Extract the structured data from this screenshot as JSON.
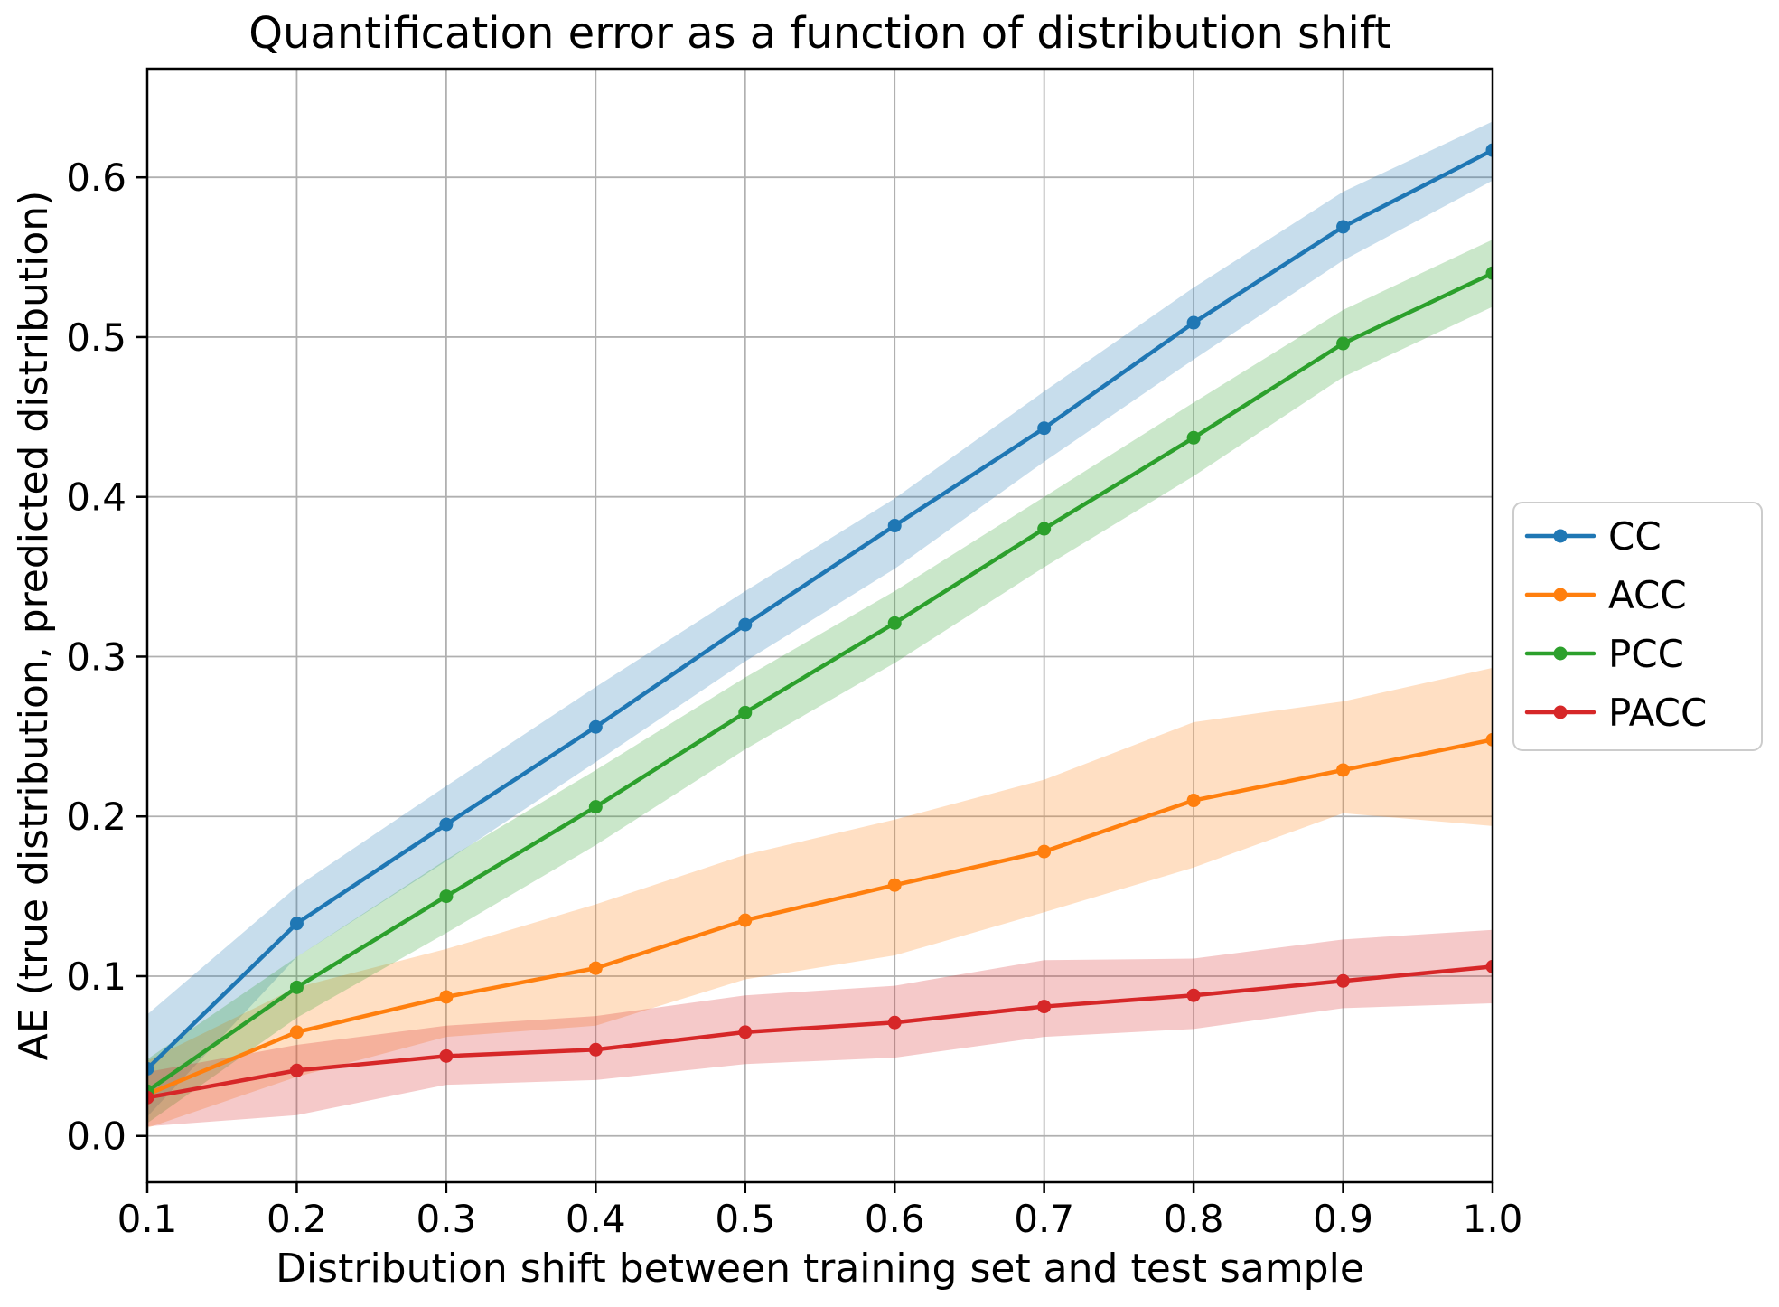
{
  "figure": {
    "background": "#ffffff",
    "title": "Quantification error as a function of distribution shift"
  },
  "chart_data": {
    "type": "line",
    "title": "Quantification error as a function of distribution shift",
    "xlabel": "Distribution shift between training set and test sample",
    "ylabel": "AE (true distribution, predicted distribution)",
    "x": [
      0.1,
      0.2,
      0.3,
      0.4,
      0.5,
      0.6,
      0.7,
      0.8,
      0.9,
      1.0
    ],
    "xticks": [
      "0.1",
      "0.2",
      "0.3",
      "0.4",
      "0.5",
      "0.6",
      "0.7",
      "0.8",
      "0.9",
      "1.0"
    ],
    "yticks": [
      "0.0",
      "0.1",
      "0.2",
      "0.3",
      "0.4",
      "0.5",
      "0.6"
    ],
    "xtick_values": [
      0.1,
      0.2,
      0.3,
      0.4,
      0.5,
      0.6,
      0.7,
      0.8,
      0.9,
      1.0
    ],
    "ytick_values": [
      0.0,
      0.1,
      0.2,
      0.3,
      0.4,
      0.5,
      0.6
    ],
    "xlim": [
      0.1,
      1.0
    ],
    "ylim": [
      -0.029,
      0.668
    ],
    "grid": true,
    "grid_color": "#b0b0b0",
    "spine_color": "#000000",
    "band_alpha": 0.25,
    "legend": {
      "position": "outside-right",
      "border_color": "#cccccc",
      "entries": [
        "CC",
        "ACC",
        "PCC",
        "PACC"
      ]
    },
    "series": [
      {
        "name": "CC",
        "color": "#1f77b4",
        "values": [
          0.042,
          0.133,
          0.195,
          0.256,
          0.32,
          0.382,
          0.443,
          0.509,
          0.569,
          0.617
        ],
        "band_upper": [
          0.076,
          0.156,
          0.219,
          0.281,
          0.341,
          0.399,
          0.466,
          0.531,
          0.591,
          0.635
        ],
        "band_lower": [
          0.012,
          0.112,
          0.172,
          0.234,
          0.297,
          0.355,
          0.422,
          0.486,
          0.548,
          0.598
        ]
      },
      {
        "name": "ACC",
        "color": "#ff7f0e",
        "values": [
          0.026,
          0.065,
          0.087,
          0.105,
          0.135,
          0.157,
          0.178,
          0.21,
          0.229,
          0.248
        ],
        "band_upper": [
          0.047,
          0.093,
          0.117,
          0.145,
          0.176,
          0.198,
          0.223,
          0.259,
          0.272,
          0.293
        ],
        "band_lower": [
          0.005,
          0.037,
          0.062,
          0.069,
          0.098,
          0.113,
          0.14,
          0.168,
          0.202,
          0.194
        ]
      },
      {
        "name": "PCC",
        "color": "#2ca02c",
        "values": [
          0.028,
          0.093,
          0.15,
          0.206,
          0.265,
          0.321,
          0.38,
          0.437,
          0.496,
          0.54
        ],
        "band_upper": [
          0.048,
          0.112,
          0.173,
          0.229,
          0.287,
          0.341,
          0.4,
          0.459,
          0.517,
          0.561
        ],
        "band_lower": [
          0.008,
          0.074,
          0.127,
          0.182,
          0.242,
          0.296,
          0.356,
          0.413,
          0.475,
          0.519
        ]
      },
      {
        "name": "PACC",
        "color": "#d62728",
        "values": [
          0.024,
          0.041,
          0.05,
          0.054,
          0.065,
          0.071,
          0.081,
          0.088,
          0.097,
          0.106
        ],
        "band_upper": [
          0.04,
          0.057,
          0.069,
          0.075,
          0.088,
          0.094,
          0.11,
          0.111,
          0.123,
          0.129
        ],
        "band_lower": [
          0.006,
          0.013,
          0.032,
          0.035,
          0.045,
          0.049,
          0.062,
          0.067,
          0.08,
          0.083
        ]
      }
    ]
  }
}
